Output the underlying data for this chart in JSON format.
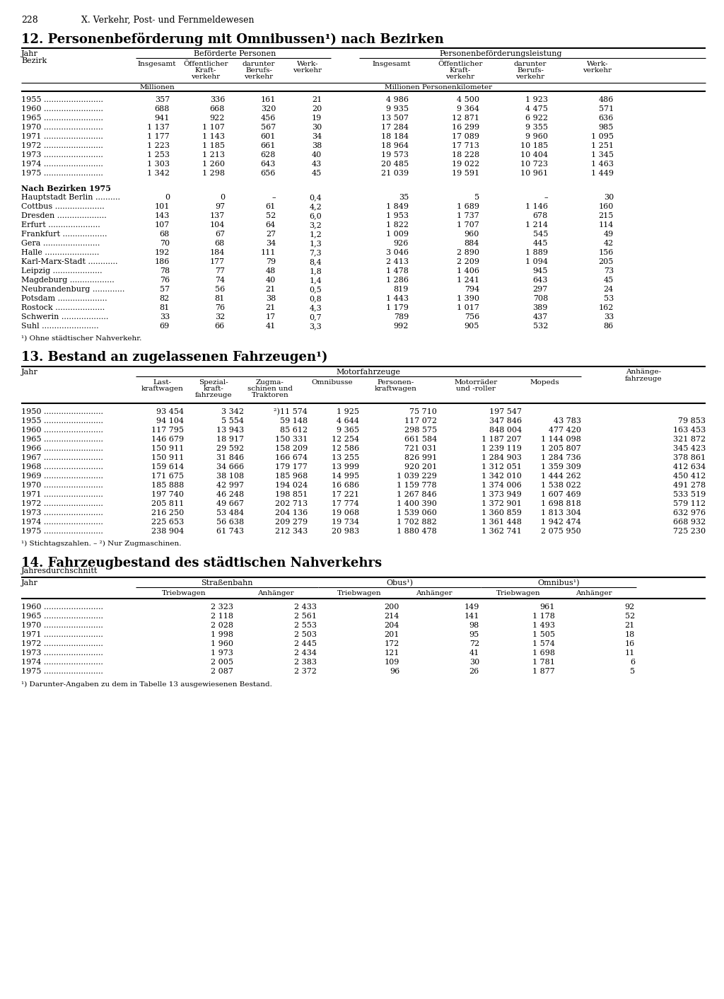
{
  "page_number": "228",
  "chapter_header": "X. Verkehr, Post- und Fernmeldewesen",
  "table1": {
    "title": "12. Personenbeförderung mit Omnibussen¹) nach Bezirken",
    "col_group1": "Beförderte Personen",
    "col_group2": "Personenbeförderungsleistung",
    "unit1": "Millionen",
    "unit2": "Millionen Personenkilometer",
    "yearly_rows": [
      [
        "1955",
        "357",
        "336",
        "161",
        "21",
        "4 986",
        "4 500",
        "1 923",
        "486"
      ],
      [
        "1960",
        "688",
        "668",
        "320",
        "20",
        "9 935",
        "9 364",
        "4 475",
        "571"
      ],
      [
        "1965",
        "941",
        "922",
        "456",
        "19",
        "13 507",
        "12 871",
        "6 922",
        "636"
      ],
      [
        "1970",
        "1 137",
        "1 107",
        "567",
        "30",
        "17 284",
        "16 299",
        "9 355",
        "985"
      ],
      [
        "1971",
        "1 177",
        "1 143",
        "601",
        "34",
        "18 184",
        "17 089",
        "9 960",
        "1 095"
      ],
      [
        "1972",
        "1 223",
        "1 185",
        "661",
        "38",
        "18 964",
        "17 713",
        "10 185",
        "1 251"
      ],
      [
        "1973",
        "1 253",
        "1 213",
        "628",
        "40",
        "19 573",
        "18 228",
        "10 404",
        "1 345"
      ],
      [
        "1974",
        "1 303",
        "1 260",
        "643",
        "43",
        "20 485",
        "19 022",
        "10 723",
        "1 463"
      ],
      [
        "1975",
        "1 342",
        "1 298",
        "656",
        "45",
        "21 039",
        "19 591",
        "10 961",
        "1 449"
      ]
    ],
    "bezirk_header": "Nach Bezirken 1975",
    "bezirk_rows": [
      [
        "Hauptstadt Berlin",
        "0",
        "0",
        "–",
        "0,4",
        "35",
        "5",
        "–",
        "30"
      ],
      [
        "Cottbus",
        "101",
        "97",
        "61",
        "4,2",
        "1 849",
        "1 689",
        "1 146",
        "160"
      ],
      [
        "Dresden",
        "143",
        "137",
        "52",
        "6,0",
        "1 953",
        "1 737",
        "678",
        "215"
      ],
      [
        "Erfurt",
        "107",
        "104",
        "64",
        "3,2",
        "1 822",
        "1 707",
        "1 214",
        "114"
      ],
      [
        "Frankfurt",
        "68",
        "67",
        "27",
        "1,2",
        "1 009",
        "960",
        "545",
        "49"
      ],
      [
        "Gera",
        "70",
        "68",
        "34",
        "1,3",
        "926",
        "884",
        "445",
        "42"
      ],
      [
        "Halle",
        "192",
        "184",
        "111",
        "7,3",
        "3 046",
        "2 890",
        "1 889",
        "156"
      ],
      [
        "Karl-Marx-Stadt",
        "186",
        "177",
        "79",
        "8,4",
        "2 413",
        "2 209",
        "1 094",
        "205"
      ],
      [
        "Leipzig",
        "78",
        "77",
        "48",
        "1,8",
        "1 478",
        "1 406",
        "945",
        "73"
      ],
      [
        "Magdeburg",
        "76",
        "74",
        "40",
        "1,4",
        "1 286",
        "1 241",
        "643",
        "45"
      ],
      [
        "Neubrandenburg",
        "57",
        "56",
        "21",
        "0,5",
        "819",
        "794",
        "297",
        "24"
      ],
      [
        "Potsdam",
        "82",
        "81",
        "38",
        "0,8",
        "1 443",
        "1 390",
        "708",
        "53"
      ],
      [
        "Rostock",
        "81",
        "76",
        "21",
        "4,3",
        "1 179",
        "1 017",
        "389",
        "162"
      ],
      [
        "Schwerin",
        "33",
        "32",
        "17",
        "0,7",
        "789",
        "756",
        "437",
        "33"
      ],
      [
        "Suhl",
        "69",
        "66",
        "41",
        "3,3",
        "992",
        "905",
        "532",
        "86"
      ]
    ],
    "footnote": "¹) Ohne städtischer Nahverkehr."
  },
  "table2": {
    "title": "13. Bestand an zugelassenen Fahrzeugen¹)",
    "col_group": "Motorfahrzeuge",
    "rows": [
      [
        "1950",
        "93 454",
        "3 342",
        "²)11 574",
        "1 925",
        "75 710",
        "197 547",
        "",
        ""
      ],
      [
        "1955",
        "94 104",
        "5 554",
        "59 148",
        "4 644",
        "117 072",
        "347 846",
        "43 783",
        "79 853"
      ],
      [
        "1960",
        "117 795",
        "13 943",
        "85 612",
        "9 365",
        "298 575",
        "848 004",
        "477 420",
        "163 453"
      ],
      [
        "1965",
        "146 679",
        "18 917",
        "150 331",
        "12 254",
        "661 584",
        "1 187 207",
        "1 144 098",
        "321 872"
      ],
      [
        "1966",
        "150 911",
        "29 592",
        "158 209",
        "12 586",
        "721 031",
        "1 239 119",
        "1 205 807",
        "345 423"
      ],
      [
        "1967",
        "150 911",
        "31 846",
        "166 674",
        "13 255",
        "826 991",
        "1 284 903",
        "1 284 736",
        "378 861"
      ],
      [
        "1968",
        "159 614",
        "34 666",
        "179 177",
        "13 999",
        "920 201",
        "1 312 051",
        "1 359 309",
        "412 634"
      ],
      [
        "1969",
        "171 675",
        "38 108",
        "185 968",
        "14 995",
        "1 039 229",
        "1 342 010",
        "1 444 262",
        "450 412"
      ],
      [
        "1970",
        "185 888",
        "42 997",
        "194 024",
        "16 686",
        "1 159 778",
        "1 374 006",
        "1 538 022",
        "491 278"
      ],
      [
        "1971",
        "197 740",
        "46 248",
        "198 851",
        "17 221",
        "1 267 846",
        "1 373 949",
        "1 607 469",
        "533 519"
      ],
      [
        "1972",
        "205 811",
        "49 667",
        "202 713",
        "17 774",
        "1 400 390",
        "1 372 901",
        "1 698 818",
        "579 112"
      ],
      [
        "1973",
        "216 250",
        "53 484",
        "204 136",
        "19 068",
        "1 539 060",
        "1 360 859",
        "1 813 304",
        "632 976"
      ],
      [
        "1974",
        "225 653",
        "56 638",
        "209 279",
        "19 734",
        "1 702 882",
        "1 361 448",
        "1 942 474",
        "668 932"
      ],
      [
        "1975",
        "238 904",
        "61 743",
        "212 343",
        "20 983",
        "1 880 478",
        "1 362 741",
        "2 075 950",
        "725 230"
      ]
    ],
    "footnote": "¹) Stichtagszahlen. – ²) Nur Zugmaschinen."
  },
  "table3": {
    "title": "14. Fahrzeugbestand des städtischen Nahverkehrs",
    "subtitle": "Jahresdurchschnitt",
    "col_groups": [
      "Straßenbahn",
      "Obus¹)",
      "Omnibus¹)"
    ],
    "rows": [
      [
        "1960",
        "2 323",
        "2 433",
        "200",
        "149",
        "961",
        "92"
      ],
      [
        "1965",
        "2 118",
        "2 561",
        "214",
        "141",
        "1 178",
        "52"
      ],
      [
        "1970",
        "2 028",
        "2 553",
        "204",
        "98",
        "1 493",
        "21"
      ],
      [
        "1971",
        "1 998",
        "2 503",
        "201",
        "95",
        "1 505",
        "18"
      ],
      [
        "1972",
        "1 960",
        "2 445",
        "172",
        "72",
        "1 574",
        "16"
      ],
      [
        "1973",
        "1 973",
        "2 434",
        "121",
        "41",
        "1 698",
        "11"
      ],
      [
        "1974",
        "2 005",
        "2 383",
        "109",
        "30",
        "1 781",
        "6"
      ],
      [
        "1975",
        "2 087",
        "2 372",
        "96",
        "26",
        "1 877",
        "5"
      ]
    ],
    "footnote": "¹) Darunter-Angaben zu dem in Tabelle 13 ausgewiesenen Bestand."
  }
}
